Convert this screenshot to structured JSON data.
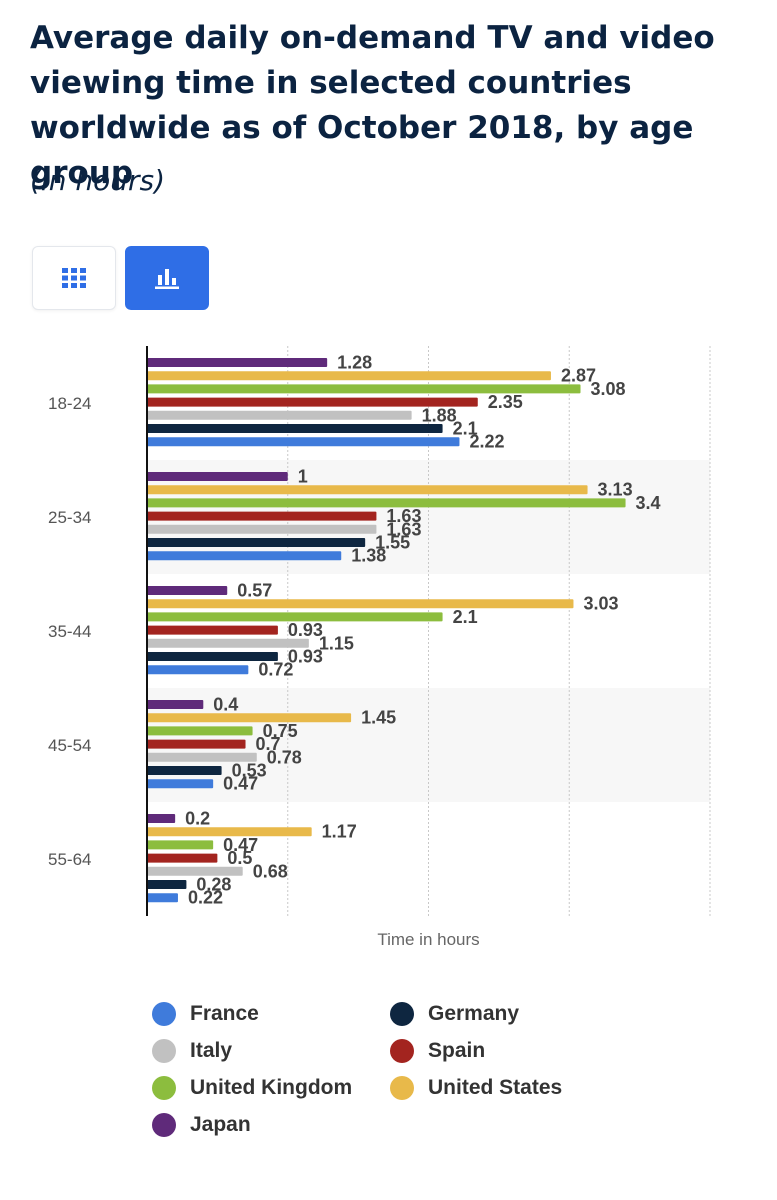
{
  "title": "Average daily on-demand TV and video viewing time in selected countries worldwide as of October 2018, by age group",
  "subtitle": "(in hours)",
  "view_toggle": {
    "table_icon": "grid-icon",
    "chart_icon": "bar-chart-icon",
    "active": "chart"
  },
  "colors": {
    "France": "#3f7bdb",
    "Germany": "#0e2640",
    "Italy": "#c1c1c1",
    "Spain": "#a3241f",
    "United Kingdom": "#8cbd3e",
    "United States": "#e8b94a",
    "Japan": "#5f2a7a",
    "accent": "#2f6ee6"
  },
  "chart_data": {
    "type": "bar",
    "orientation": "horizontal",
    "categories": [
      "18-24",
      "25-34",
      "35-44",
      "45-54",
      "55-64"
    ],
    "series": [
      {
        "name": "Japan",
        "values": [
          1.28,
          1,
          0.57,
          0.4,
          0.2
        ]
      },
      {
        "name": "United States",
        "values": [
          2.87,
          3.13,
          3.03,
          1.45,
          1.17
        ]
      },
      {
        "name": "United Kingdom",
        "values": [
          3.08,
          3.4,
          2.1,
          0.75,
          0.47
        ]
      },
      {
        "name": "Spain",
        "values": [
          2.35,
          1.63,
          0.93,
          0.7,
          0.5
        ]
      },
      {
        "name": "Italy",
        "values": [
          1.88,
          1.63,
          1.15,
          0.78,
          0.68
        ]
      },
      {
        "name": "Germany",
        "values": [
          2.1,
          1.55,
          0.93,
          0.53,
          0.28
        ]
      },
      {
        "name": "France",
        "values": [
          2.22,
          1.38,
          0.72,
          0.47,
          0.22
        ]
      }
    ],
    "xlabel": "Time in hours",
    "ylabel": "",
    "xlim": [
      0,
      4
    ],
    "grid": true
  },
  "legend": [
    {
      "name": "France",
      "color": "#3f7bdb"
    },
    {
      "name": "Germany",
      "color": "#0e2640"
    },
    {
      "name": "Italy",
      "color": "#c1c1c1"
    },
    {
      "name": "Spain",
      "color": "#a3241f"
    },
    {
      "name": "United Kingdom",
      "color": "#8cbd3e"
    },
    {
      "name": "United States",
      "color": "#e8b94a"
    },
    {
      "name": "Japan",
      "color": "#5f2a7a"
    }
  ]
}
